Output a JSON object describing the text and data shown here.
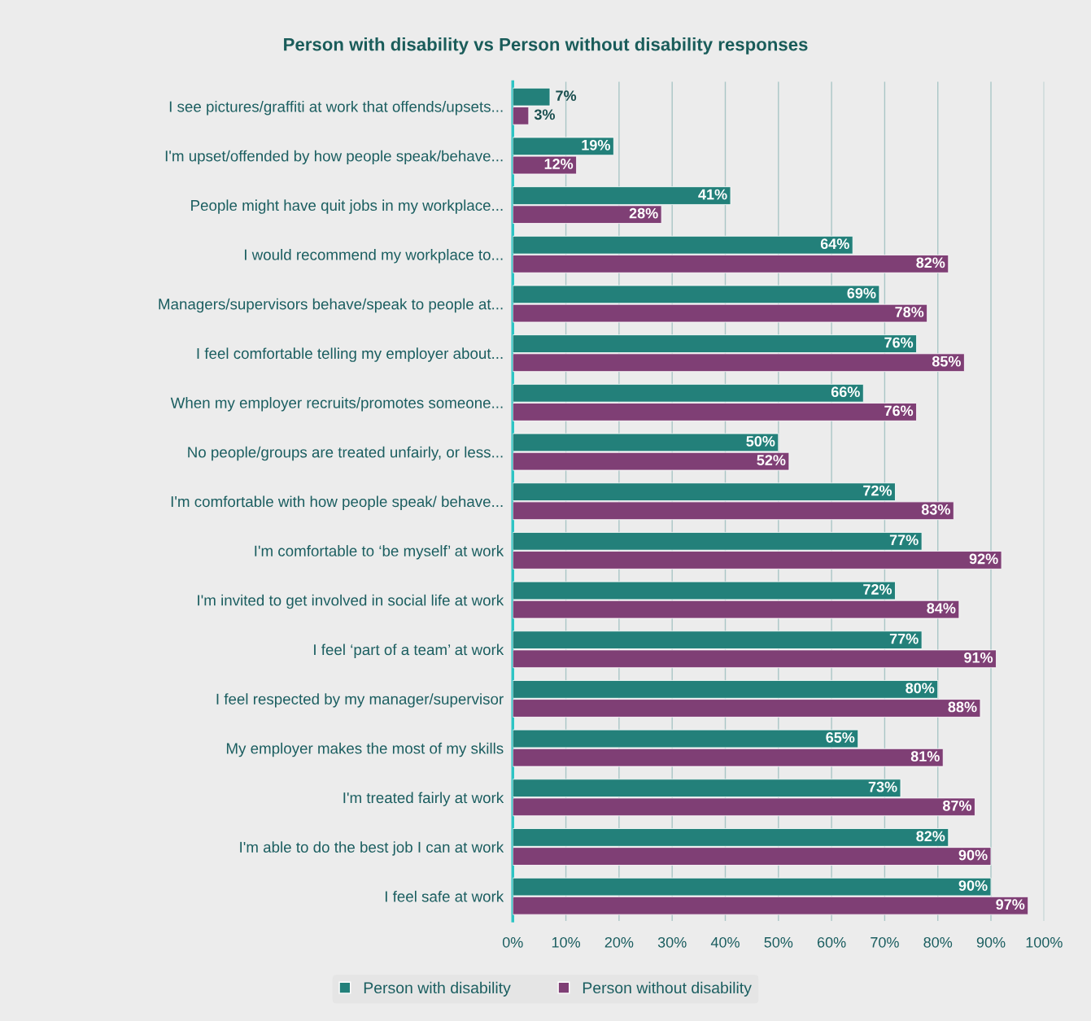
{
  "chart_data": {
    "type": "bar",
    "orientation": "horizontal",
    "title": "Person with disability vs Person without disability responses",
    "categories": [
      "I see pictures/graffiti at work that offends/upsets...",
      "I'm upset/offended by how people speak/behave...",
      "People might have quit jobs in my workplace...",
      "I would recommend my workplace to...",
      "Managers/supervisors behave/speak to people at...",
      "I feel comfortable telling my employer about...",
      "When my employer recruits/promotes someone...",
      "No people/groups are treated unfairly, or less...",
      "I'm comfortable with how people speak/ behave...",
      "I'm comfortable to ‘be myself’ at work",
      "I'm invited to get involved in social life at work",
      "I feel ‘part of a team’ at work",
      "I feel respected by my manager/supervisor",
      "My employer makes the most of my skills",
      "I'm treated fairly at work",
      "I'm able to do the best job I can at work",
      "I feel safe at work"
    ],
    "series": [
      {
        "name": "Person with disability",
        "color": "#23807a",
        "values": [
          7,
          19,
          41,
          64,
          69,
          76,
          66,
          50,
          72,
          77,
          72,
          77,
          80,
          65,
          73,
          82,
          90
        ],
        "value_labels": [
          "7%",
          "19%",
          "41%",
          "64%",
          "69%",
          "76%",
          "66%",
          "50%",
          "72%",
          "77%",
          "72%",
          "77%",
          "80%",
          "65%",
          "73%",
          "82%",
          "90%"
        ]
      },
      {
        "name": "Person without disability",
        "color": "#7f3f75",
        "values": [
          3,
          12,
          28,
          82,
          78,
          85,
          76,
          52,
          83,
          92,
          84,
          91,
          88,
          81,
          87,
          90,
          97
        ],
        "value_labels": [
          "3%",
          "12%",
          "28%",
          "82%",
          "78%",
          "85%",
          "76%",
          "52%",
          "83%",
          "92%",
          "84%",
          "91%",
          "88%",
          "81%",
          "87%",
          "90%",
          "97%"
        ]
      }
    ],
    "xlim": [
      0,
      100
    ],
    "xticks": [
      {
        "value": 0,
        "label": "0%"
      },
      {
        "value": 10,
        "label": "10%"
      },
      {
        "value": 20,
        "label": "20%"
      },
      {
        "value": 30,
        "label": "30%"
      },
      {
        "value": 40,
        "label": "40%"
      },
      {
        "value": 50,
        "label": "50%"
      },
      {
        "value": 60,
        "label": "60%"
      },
      {
        "value": 70,
        "label": "70%"
      },
      {
        "value": 80,
        "label": "80%"
      },
      {
        "value": 90,
        "label": "90%"
      },
      {
        "value": 100,
        "label": "100%"
      }
    ],
    "grid": "x",
    "legend": "bottom"
  }
}
